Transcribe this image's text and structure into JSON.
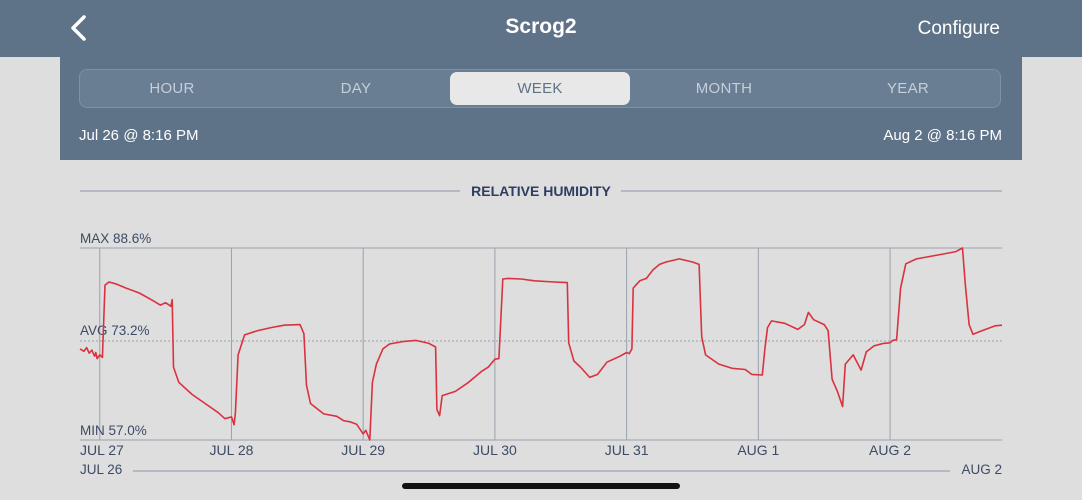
{
  "header": {
    "title": "Scrog2",
    "configure_label": "Configure",
    "back_icon": "chevron-left-icon"
  },
  "range_tabs": [
    {
      "label": "HOUR",
      "active": false
    },
    {
      "label": "DAY",
      "active": false
    },
    {
      "label": "WEEK",
      "active": true
    },
    {
      "label": "MONTH",
      "active": false
    },
    {
      "label": "YEAR",
      "active": false
    }
  ],
  "time_range": {
    "start": "Jul 26 @ 8:16 PM",
    "end": "Aug 2 @ 8:16 PM"
  },
  "colors": {
    "line": "#d9323f",
    "header_bg": "#5e7288",
    "grid": "#9aa2ad",
    "text": "#3c4a66"
  },
  "chart_data": {
    "type": "line",
    "title": "RELATIVE HUMIDITY",
    "max_label": "MAX 88.6%",
    "avg_label": "AVG 73.2%",
    "min_label": "MIN 57.0%",
    "ylim": [
      57.0,
      88.6
    ],
    "avg": 73.2,
    "x_unit": "days since Jul 27 00:00",
    "x_range": [
      -0.15,
      6.85
    ],
    "x_ticks": [
      {
        "x": 0,
        "label": "JUL 27"
      },
      {
        "x": 1,
        "label": "JUL 28"
      },
      {
        "x": 2,
        "label": "JUL 29"
      },
      {
        "x": 3,
        "label": "JUL 30"
      },
      {
        "x": 4,
        "label": "JUL 31"
      },
      {
        "x": 5,
        "label": "AUG 1"
      },
      {
        "x": 6,
        "label": "AUG 2"
      }
    ],
    "overview_start_label": "JUL 26",
    "overview_end_label": "AUG 2",
    "series": [
      {
        "name": "",
        "points": [
          [
            -0.15,
            72.0
          ],
          [
            -0.12,
            71.6
          ],
          [
            -0.1,
            72.2
          ],
          [
            -0.08,
            71.3
          ],
          [
            -0.06,
            71.8
          ],
          [
            -0.04,
            70.8
          ],
          [
            -0.03,
            71.4
          ],
          [
            -0.02,
            70.4
          ],
          [
            0.0,
            71.0
          ],
          [
            0.02,
            70.6
          ],
          [
            0.04,
            82.5
          ],
          [
            0.07,
            83.0
          ],
          [
            0.12,
            82.7
          ],
          [
            0.2,
            82.0
          ],
          [
            0.3,
            81.2
          ],
          [
            0.4,
            80.0
          ],
          [
            0.46,
            79.2
          ],
          [
            0.5,
            79.6
          ],
          [
            0.54,
            79.0
          ],
          [
            0.55,
            80.1
          ],
          [
            0.56,
            69.0
          ],
          [
            0.6,
            66.5
          ],
          [
            0.7,
            64.5
          ],
          [
            0.8,
            63.0
          ],
          [
            0.9,
            61.5
          ],
          [
            0.95,
            60.5
          ],
          [
            1.0,
            60.8
          ],
          [
            1.02,
            59.5
          ],
          [
            1.03,
            61.5
          ],
          [
            1.05,
            71.0
          ],
          [
            1.1,
            74.3
          ],
          [
            1.2,
            75.0
          ],
          [
            1.3,
            75.5
          ],
          [
            1.4,
            75.9
          ],
          [
            1.52,
            76.0
          ],
          [
            1.54,
            75.0
          ],
          [
            1.55,
            74.5
          ],
          [
            1.57,
            66.0
          ],
          [
            1.6,
            63.0
          ],
          [
            1.7,
            61.3
          ],
          [
            1.8,
            60.9
          ],
          [
            1.85,
            60.2
          ],
          [
            1.9,
            60.0
          ],
          [
            1.95,
            59.6
          ],
          [
            2.0,
            58.0
          ],
          [
            2.02,
            58.6
          ],
          [
            2.05,
            57.0
          ],
          [
            2.07,
            66.5
          ],
          [
            2.1,
            69.5
          ],
          [
            2.15,
            72.0
          ],
          [
            2.2,
            72.8
          ],
          [
            2.3,
            73.2
          ],
          [
            2.4,
            73.4
          ],
          [
            2.5,
            72.9
          ],
          [
            2.55,
            72.3
          ],
          [
            2.56,
            62.0
          ],
          [
            2.58,
            61.0
          ],
          [
            2.6,
            64.3
          ],
          [
            2.7,
            65.0
          ],
          [
            2.8,
            66.5
          ],
          [
            2.9,
            68.3
          ],
          [
            2.95,
            69.0
          ],
          [
            3.0,
            70.3
          ],
          [
            3.03,
            70.4
          ],
          [
            3.06,
            83.5
          ],
          [
            3.1,
            83.6
          ],
          [
            3.2,
            83.5
          ],
          [
            3.3,
            83.2
          ],
          [
            3.45,
            83.0
          ],
          [
            3.55,
            82.9
          ],
          [
            3.56,
            73.0
          ],
          [
            3.6,
            70.0
          ],
          [
            3.65,
            69.0
          ],
          [
            3.72,
            67.3
          ],
          [
            3.78,
            67.8
          ],
          [
            3.85,
            69.8
          ],
          [
            3.95,
            70.8
          ],
          [
            4.0,
            71.4
          ],
          [
            4.02,
            71.2
          ],
          [
            4.04,
            72.0
          ],
          [
            4.05,
            82.0
          ],
          [
            4.1,
            83.2
          ],
          [
            4.15,
            83.6
          ],
          [
            4.2,
            85.0
          ],
          [
            4.25,
            85.9
          ],
          [
            4.3,
            86.3
          ],
          [
            4.4,
            86.8
          ],
          [
            4.5,
            86.3
          ],
          [
            4.55,
            85.9
          ],
          [
            4.57,
            74.0
          ],
          [
            4.6,
            71.0
          ],
          [
            4.7,
            69.5
          ],
          [
            4.8,
            68.8
          ],
          [
            4.9,
            68.6
          ],
          [
            4.95,
            67.8
          ],
          [
            5.03,
            67.7
          ],
          [
            5.05,
            72.0
          ],
          [
            5.07,
            75.5
          ],
          [
            5.1,
            76.6
          ],
          [
            5.2,
            76.2
          ],
          [
            5.3,
            75.2
          ],
          [
            5.35,
            76.0
          ],
          [
            5.38,
            78.0
          ],
          [
            5.42,
            76.8
          ],
          [
            5.5,
            76.0
          ],
          [
            5.53,
            75.0
          ],
          [
            5.56,
            67.0
          ],
          [
            5.6,
            65.0
          ],
          [
            5.64,
            62.5
          ],
          [
            5.66,
            69.5
          ],
          [
            5.72,
            71.0
          ],
          [
            5.78,
            68.5
          ],
          [
            5.82,
            71.5
          ],
          [
            5.88,
            72.5
          ],
          [
            5.95,
            72.9
          ],
          [
            6.0,
            73.0
          ],
          [
            6.02,
            73.4
          ],
          [
            6.05,
            73.5
          ],
          [
            6.08,
            82.0
          ],
          [
            6.12,
            86.0
          ],
          [
            6.2,
            86.8
          ],
          [
            6.3,
            87.2
          ],
          [
            6.4,
            87.6
          ],
          [
            6.5,
            88.0
          ],
          [
            6.55,
            88.6
          ],
          [
            6.57,
            83.0
          ],
          [
            6.6,
            76.0
          ],
          [
            6.63,
            74.4
          ],
          [
            6.7,
            75.0
          ],
          [
            6.8,
            75.8
          ],
          [
            6.85,
            75.9
          ]
        ]
      }
    ]
  }
}
